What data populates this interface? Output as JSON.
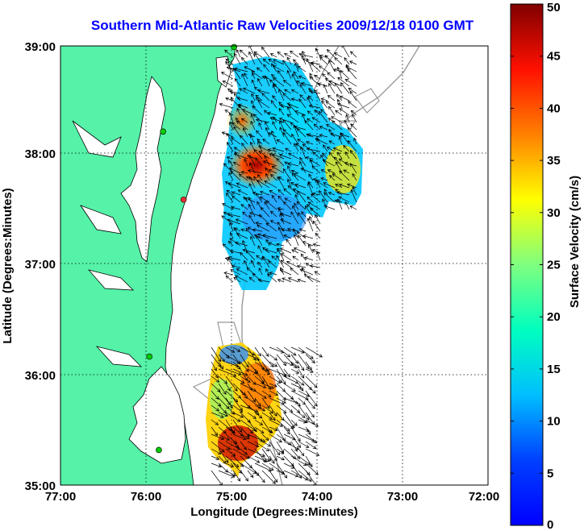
{
  "title": "Southern Mid-Atlantic Raw Velocities 2009/12/18 0100 GMT",
  "map": {
    "xlabel": "Longitude (Degrees:Minutes)",
    "ylabel": "Latitude (Degrees:Minutes)",
    "xticks": [
      "77:00",
      "76:00",
      "75:00",
      "74:00",
      "73:00",
      "72:00"
    ],
    "yticks": [
      "39:00",
      "38:00",
      "37:00",
      "36:00",
      "35:00"
    ],
    "lon_range": [
      -77,
      -72
    ],
    "lat_range": [
      35,
      39
    ],
    "land_color": "#55f2a8",
    "grid": "dotted"
  },
  "colorbar": {
    "label": "Surface Velocity (cm/s)",
    "range": [
      0,
      50
    ],
    "ticks": [
      "50",
      "45",
      "40",
      "35",
      "30",
      "25",
      "20",
      "15",
      "10",
      "5",
      "0"
    ],
    "colormap": "jet"
  },
  "stations": [
    {
      "lon": -74.97,
      "lat": 38.99,
      "color": "#00cc00"
    },
    {
      "lon": -75.8,
      "lat": 38.22,
      "color": "#00cc00"
    },
    {
      "lon": -75.56,
      "lat": 37.6,
      "color": "#e53030"
    },
    {
      "lon": -75.96,
      "lat": 36.17,
      "color": "#00cc00"
    },
    {
      "lon": -75.85,
      "lat": 35.32,
      "color": "#00cc00"
    }
  ]
}
